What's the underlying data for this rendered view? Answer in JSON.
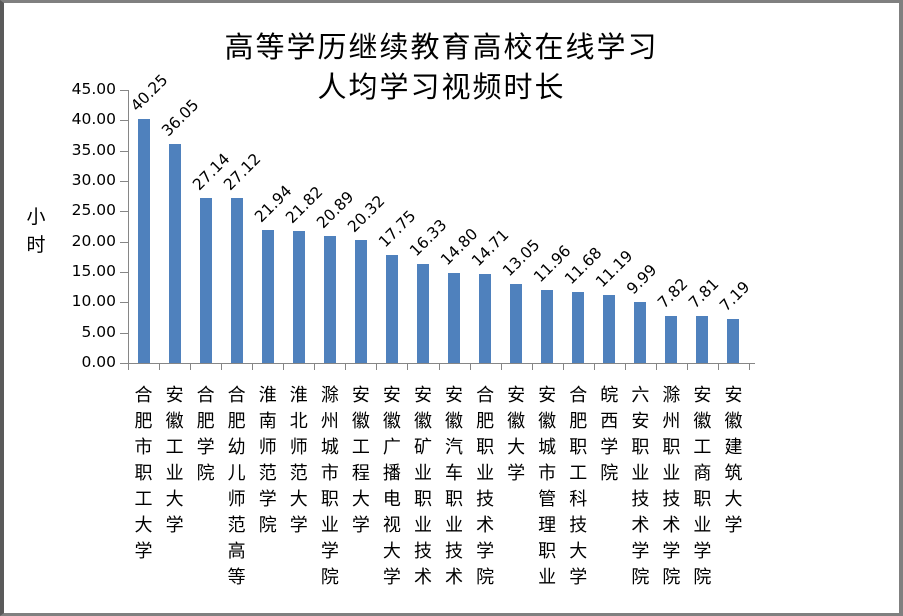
{
  "chart_data": {
    "type": "bar",
    "title": "高等学历继续教育高校在线学习人均学习视频时长",
    "title_lines": [
      "高等学历继续教育高校在线学习",
      "人均学习视频时长"
    ],
    "xlabel": "",
    "ylabel": "小时",
    "ylim": [
      0,
      45
    ],
    "yticks": [
      "0.00",
      "5.00",
      "10.00",
      "15.00",
      "20.00",
      "25.00",
      "30.00",
      "35.00",
      "40.00",
      "45.00"
    ],
    "grid": false,
    "legend": null,
    "bar_color": "#4f81bd",
    "categories": [
      "合肥市职工大学",
      "安徽工业大学",
      "合肥学院",
      "合肥幼儿师范高等",
      "淮南师范学院",
      "淮北师范大学",
      "滁州城市职业学院",
      "安徽工程大学",
      "安徽广播电视大学",
      "安徽矿业职业技术",
      "安徽汽车职业技术",
      "合肥职业技术学院",
      "安徽大学",
      "安徽城市管理职业",
      "合肥职工科技大学",
      "皖西学院",
      "六安职业技术学院",
      "滁州职业技术学院",
      "安徽工商职业学院",
      "安徽建筑大学"
    ],
    "values": [
      40.25,
      36.05,
      27.14,
      27.12,
      21.94,
      21.82,
      20.89,
      20.32,
      17.75,
      16.33,
      14.8,
      14.71,
      13.05,
      11.96,
      11.68,
      11.19,
      9.99,
      7.82,
      7.81,
      7.19
    ],
    "value_labels": [
      "40.25",
      "36.05",
      "27.14",
      "27.12",
      "21.94",
      "21.82",
      "20.89",
      "20.32",
      "17.75",
      "16.33",
      "14.80",
      "14.71",
      "13.05",
      "11.96",
      "11.68",
      "11.19",
      "9.99",
      "7.82",
      "7.81",
      "7.19"
    ]
  }
}
